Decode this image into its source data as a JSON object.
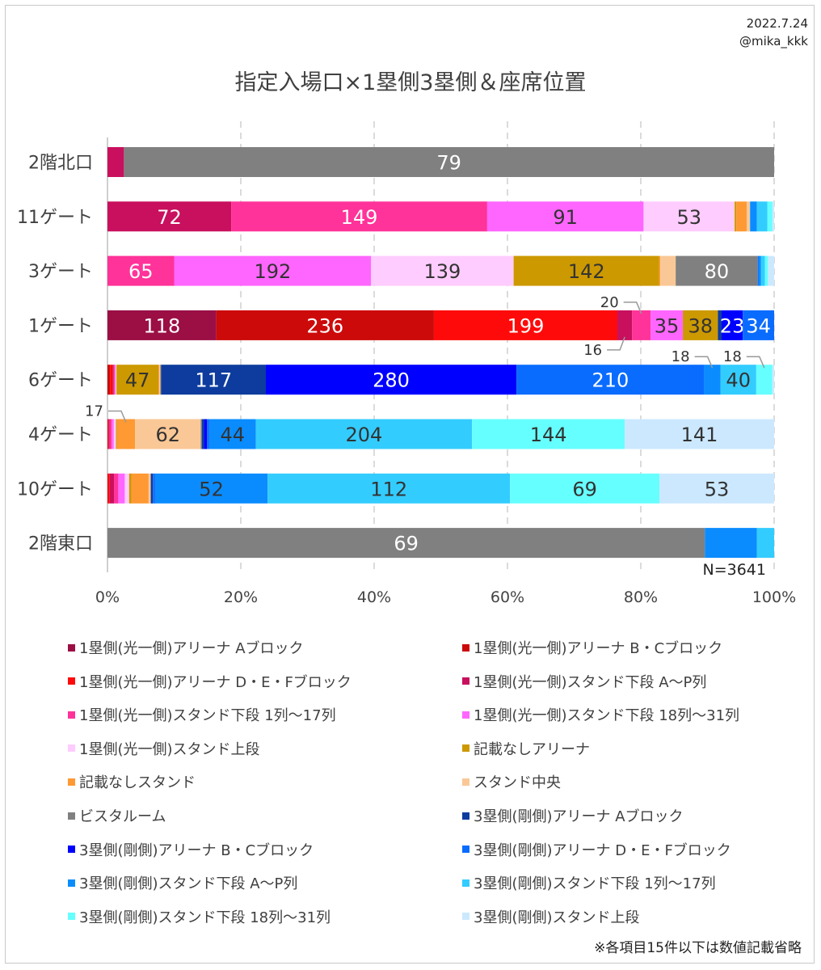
{
  "header": {
    "date": "2022.7.24",
    "handle": "@mika_kkk"
  },
  "footnote": "※各項目15件以下は数値記載省略",
  "chart_data": {
    "type": "bar",
    "orientation": "horizontal",
    "stacked": "percent",
    "title": "指定入場口×1塁側3塁側＆座席位置",
    "n_label": "N=3641",
    "xlim": [
      0,
      100
    ],
    "xticks": [
      "0%",
      "20%",
      "40%",
      "60%",
      "80%",
      "100%"
    ],
    "grid": "vertical-dashed",
    "categories": [
      "2階北口",
      "11ゲート",
      "3ゲート",
      "1ゲート",
      "6ゲート",
      "4ゲート",
      "10ゲート",
      "2階東口"
    ],
    "series": [
      {
        "name": "1塁側(光一側)アリーナ Aブロック",
        "color": "#9b0f45",
        "values": [
          0,
          0,
          0,
          118,
          0,
          0,
          0,
          0
        ]
      },
      {
        "name": "1塁側(光一側)アリーナ B・Cブロック",
        "color": "#cc0a0a",
        "values": [
          0,
          0,
          0,
          236,
          3,
          0,
          0,
          0
        ]
      },
      {
        "name": "1塁側(光一側)アリーナ D・E・Fブロック",
        "color": "#ff0a0a",
        "values": [
          0,
          0,
          0,
          199,
          3,
          1,
          1,
          0
        ]
      },
      {
        "name": "1塁側(光一側)スタンド下段 A～P列",
        "color": "#c8105e",
        "values": [
          2,
          72,
          0,
          16,
          1,
          1,
          2,
          0
        ]
      },
      {
        "name": "1塁側(光一側)スタンド下段 1列～17列",
        "color": "#ff3399",
        "values": [
          0,
          149,
          65,
          20,
          1,
          2,
          2,
          0
        ]
      },
      {
        "name": "1塁側(光一側)スタンド下段 18列～31列",
        "color": "#ff66ff",
        "values": [
          0,
          91,
          192,
          35,
          1,
          2,
          3,
          0
        ]
      },
      {
        "name": "1塁側(光一側)スタンド上段",
        "color": "#ffccff",
        "values": [
          0,
          53,
          139,
          0,
          1,
          2,
          2,
          0
        ]
      },
      {
        "name": "記載なしアリーナ",
        "color": "#cc9900",
        "values": [
          0,
          1,
          142,
          38,
          47,
          1,
          1,
          0
        ]
      },
      {
        "name": "記載なしスタンド",
        "color": "#ff9933",
        "values": [
          0,
          6,
          1,
          0,
          1,
          17,
          8,
          0
        ]
      },
      {
        "name": "スタンド中央",
        "color": "#fac896",
        "values": [
          0,
          2,
          15,
          0,
          1,
          62,
          1,
          0
        ]
      },
      {
        "name": "ビスタルーム",
        "color": "#808080",
        "values": [
          79,
          0,
          80,
          0,
          1,
          1,
          0,
          69
        ]
      },
      {
        "name": "3塁側(剛側)アリーナ Aブロック",
        "color": "#0d3c9e",
        "values": [
          0,
          0,
          0,
          4,
          117,
          2,
          1,
          0
        ]
      },
      {
        "name": "3塁側(剛側)アリーナ B・Cブロック",
        "color": "#0000ff",
        "values": [
          0,
          0,
          0,
          23,
          280,
          3,
          0,
          0
        ]
      },
      {
        "name": "3塁側(剛側)アリーナ D・E・Fブロック",
        "color": "#0a6cff",
        "values": [
          0,
          0,
          1,
          34,
          210,
          2,
          1,
          0
        ]
      },
      {
        "name": "3塁側(剛側)スタンド下段 A～P列",
        "color": "#0a8cff",
        "values": [
          0,
          4,
          2,
          0,
          18,
          44,
          52,
          6
        ]
      },
      {
        "name": "3塁側(剛側)スタンド下段 1列～17列",
        "color": "#33ccff",
        "values": [
          0,
          6,
          4,
          0,
          40,
          204,
          112,
          2
        ]
      },
      {
        "name": "3塁側(剛側)スタンド下段 18列～31列",
        "color": "#66ffff",
        "values": [
          0,
          3,
          3,
          0,
          18,
          144,
          69,
          0
        ]
      },
      {
        "name": "3塁側(剛側)スタンド上段",
        "color": "#cce8ff",
        "values": [
          0,
          1,
          6,
          0,
          2,
          141,
          53,
          0
        ]
      }
    ],
    "callouts": [
      {
        "category": "1ゲート",
        "series": 4,
        "text": "20",
        "side": "above"
      },
      {
        "category": "1ゲート",
        "series": 3,
        "text": "16",
        "side": "below"
      },
      {
        "category": "6ゲート",
        "series": 14,
        "text": "18",
        "side": "above"
      },
      {
        "category": "6ゲート",
        "series": 16,
        "text": "18",
        "side": "above"
      },
      {
        "category": "4ゲート",
        "series": 8,
        "text": "17",
        "side": "above"
      }
    ]
  }
}
